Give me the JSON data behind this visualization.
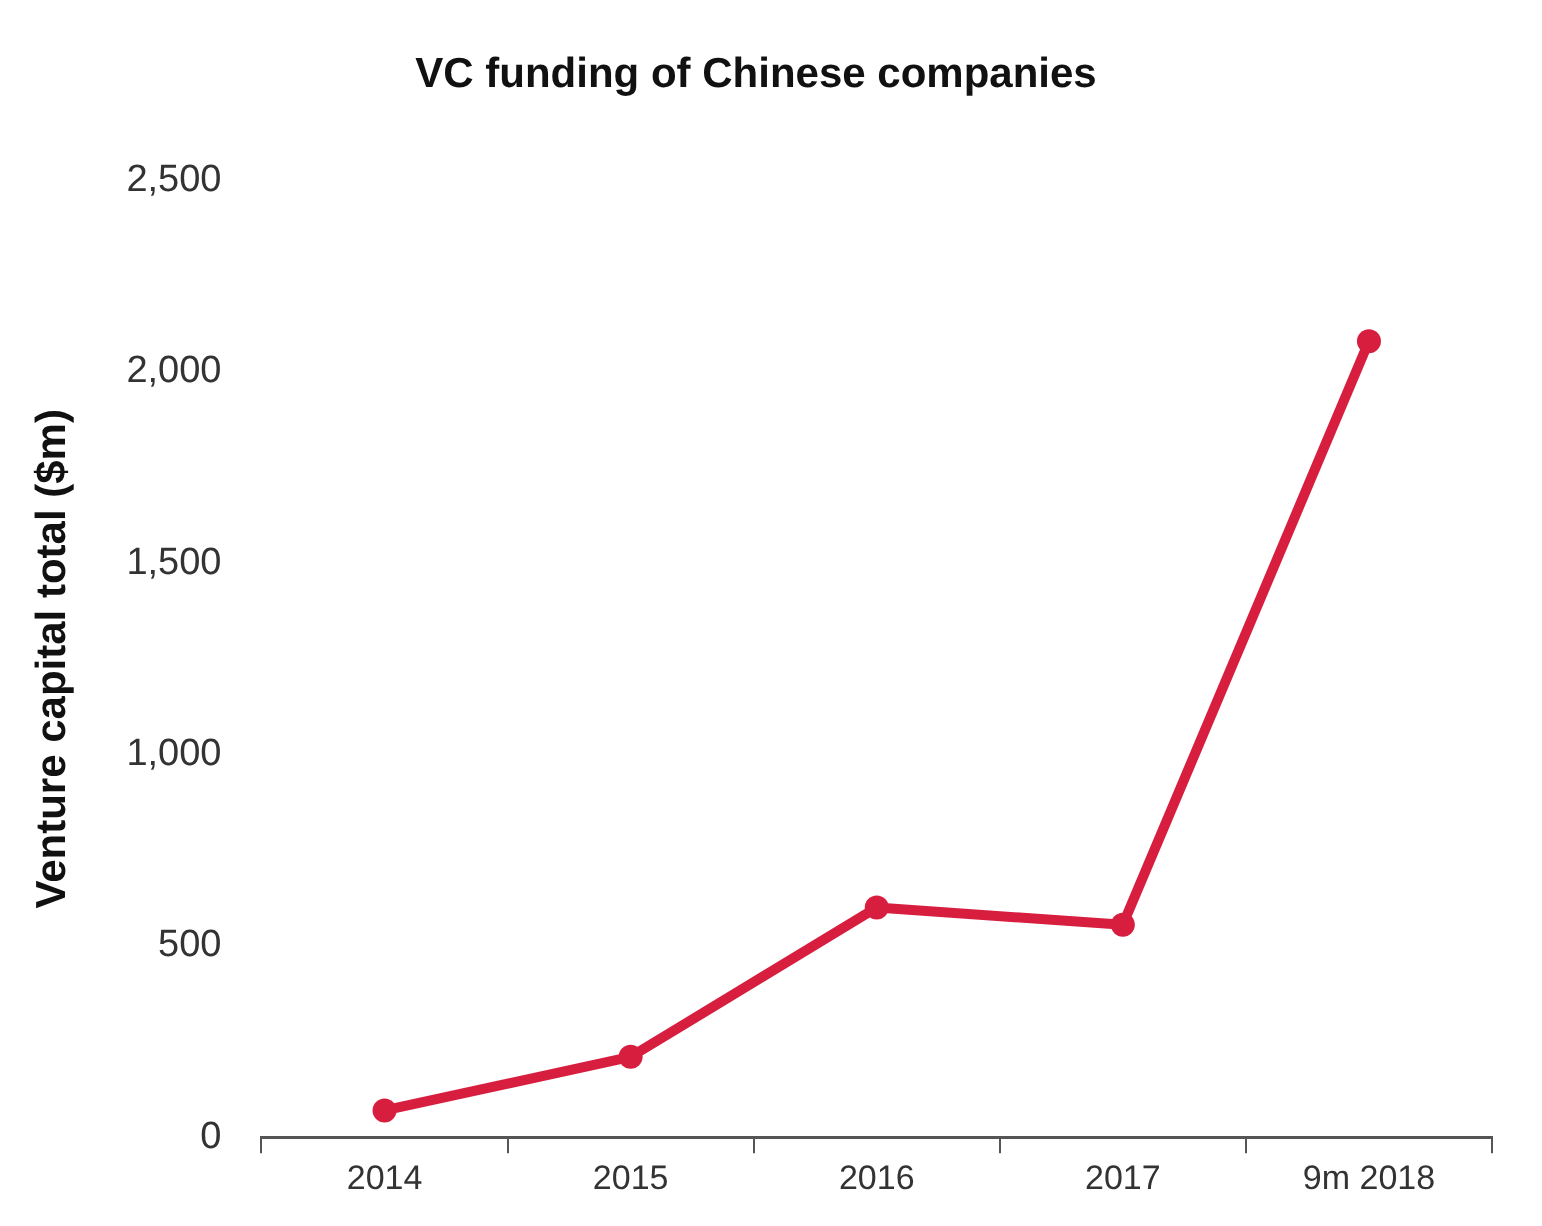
{
  "chart_data": {
    "type": "line",
    "title": "VC funding of Chinese companies",
    "ylabel": "Venture capital total ($m)",
    "categories": [
      "2014",
      "2015",
      "2016",
      "2017",
      "9m 2018"
    ],
    "series": [
      {
        "color": "#d81e3f",
        "values": [
          70,
          210,
          600,
          555,
          2080
        ]
      }
    ],
    "ylim": [
      0,
      2500
    ],
    "yticks": [
      {
        "value": 0,
        "label": "0"
      },
      {
        "value": 500,
        "label": "500"
      },
      {
        "value": 1000,
        "label": "1,000"
      },
      {
        "value": 1500,
        "label": "1,500"
      },
      {
        "value": 2000,
        "label": "2,000"
      },
      {
        "value": 2500,
        "label": "2,500"
      }
    ],
    "grid": false,
    "legend": false,
    "marker": "circle",
    "line_style": "solid"
  }
}
